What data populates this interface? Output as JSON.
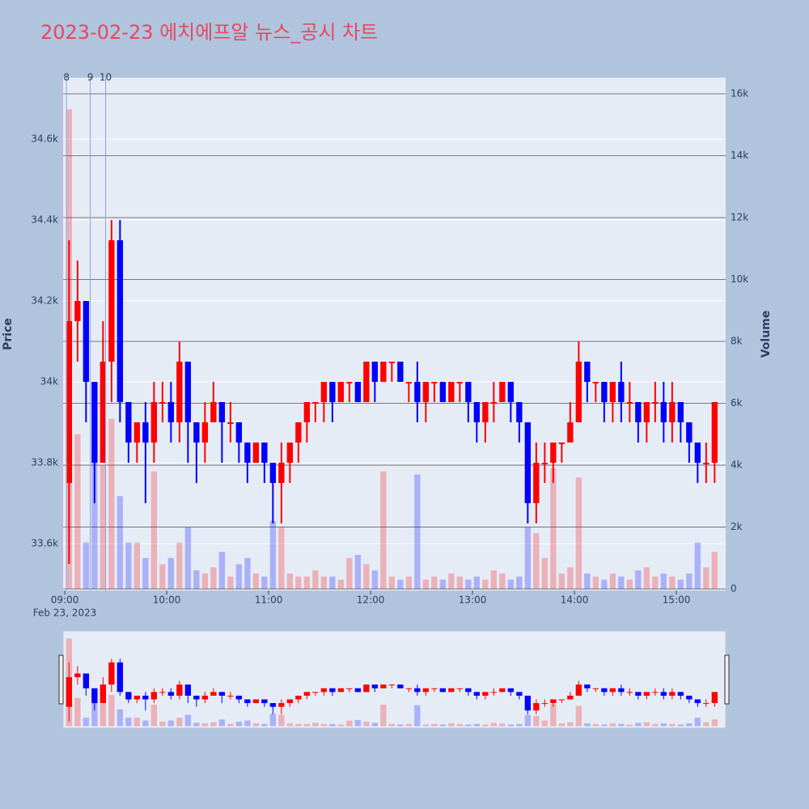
{
  "chart_data": {
    "type": "candlestick",
    "title": "2023-02-23 에치에프알 뉴스_공시 차트",
    "y_axis_title": "Price",
    "y2_axis_title": "Volume",
    "x_axis_date": "Feb 23, 2023",
    "increasing_color": "#ff0000",
    "decreasing_color": "#0000ff",
    "xlim": [
      "2023-02-23 08:59",
      "2023-02-23 15:29"
    ],
    "xticks": [
      {
        "value": "2023-02-23 09:00",
        "label": "09:00"
      },
      {
        "value": "2023-02-23 10:00",
        "label": "10:00"
      },
      {
        "value": "2023-02-23 11:00",
        "label": "11:00"
      },
      {
        "value": "2023-02-23 12:00",
        "label": "12:00"
      },
      {
        "value": "2023-02-23 13:00",
        "label": "13:00"
      },
      {
        "value": "2023-02-23 14:00",
        "label": "14:00"
      },
      {
        "value": "2023-02-23 15:00",
        "label": "15:00"
      }
    ],
    "ylim": [
      33484,
      34752
    ],
    "yticks": [
      {
        "value": 33600,
        "label": "33.6k"
      },
      {
        "value": 33800,
        "label": "33.8k"
      },
      {
        "value": 34000,
        "label": "34k"
      },
      {
        "value": 34200,
        "label": "34.2k"
      },
      {
        "value": 34400,
        "label": "34.4k"
      },
      {
        "value": 34600,
        "label": "34.6k"
      }
    ],
    "y2lim": [
      -52,
      16523
    ],
    "y2ticks": [
      0,
      {
        "value": 2000,
        "label": "2k"
      },
      {
        "value": 4000,
        "label": "4k"
      },
      {
        "value": 6000,
        "label": "6k"
      },
      {
        "value": 8000,
        "label": "8k"
      },
      {
        "value": 10000,
        "label": "10k"
      },
      {
        "value": 12000,
        "label": "12k"
      },
      {
        "value": 14000,
        "label": "14k"
      },
      {
        "value": 16000,
        "label": "16k"
      }
    ],
    "annotations": [
      {
        "x": "2023-02-23 09:01",
        "text": "8"
      },
      {
        "x": "2023-02-23 09:15",
        "text": "9"
      },
      {
        "x": "2023-02-23 09:24",
        "text": "10"
      }
    ],
    "x": [
      "2023-02-23 09:00",
      "2023-02-23 09:05",
      "2023-02-23 09:10",
      "2023-02-23 09:15",
      "2023-02-23 09:20",
      "2023-02-23 09:25",
      "2023-02-23 09:30",
      "2023-02-23 09:35",
      "2023-02-23 09:40",
      "2023-02-23 09:45",
      "2023-02-23 09:50",
      "2023-02-23 09:55",
      "2023-02-23 10:00",
      "2023-02-23 10:05",
      "2023-02-23 10:10",
      "2023-02-23 10:15",
      "2023-02-23 10:20",
      "2023-02-23 10:25",
      "2023-02-23 10:30",
      "2023-02-23 10:35",
      "2023-02-23 10:40",
      "2023-02-23 10:45",
      "2023-02-23 10:50",
      "2023-02-23 10:55",
      "2023-02-23 11:00",
      "2023-02-23 11:05",
      "2023-02-23 11:10",
      "2023-02-23 11:15",
      "2023-02-23 11:20",
      "2023-02-23 11:25",
      "2023-02-23 11:30",
      "2023-02-23 11:35",
      "2023-02-23 11:40",
      "2023-02-23 11:45",
      "2023-02-23 11:50",
      "2023-02-23 11:55",
      "2023-02-23 12:00",
      "2023-02-23 12:05",
      "2023-02-23 12:10",
      "2023-02-23 12:15",
      "2023-02-23 12:20",
      "2023-02-23 12:25",
      "2023-02-23 12:30",
      "2023-02-23 12:35",
      "2023-02-23 12:40",
      "2023-02-23 12:45",
      "2023-02-23 12:50",
      "2023-02-23 12:55",
      "2023-02-23 13:00",
      "2023-02-23 13:05",
      "2023-02-23 13:10",
      "2023-02-23 13:15",
      "2023-02-23 13:20",
      "2023-02-23 13:25",
      "2023-02-23 13:30",
      "2023-02-23 13:35",
      "2023-02-23 13:40",
      "2023-02-23 13:45",
      "2023-02-23 13:50",
      "2023-02-23 13:55",
      "2023-02-23 14:00",
      "2023-02-23 14:05",
      "2023-02-23 14:10",
      "2023-02-23 14:15",
      "2023-02-23 14:20",
      "2023-02-23 14:25",
      "2023-02-23 14:30",
      "2023-02-23 14:35",
      "2023-02-23 14:40",
      "2023-02-23 14:45",
      "2023-02-23 14:50",
      "2023-02-23 14:55",
      "2023-02-23 15:00",
      "2023-02-23 15:05",
      "2023-02-23 15:10",
      "2023-02-23 15:15",
      "2023-02-23 15:20"
    ],
    "open": [
      33750,
      34150,
      34200,
      34000,
      33800,
      34050,
      34350,
      33950,
      33850,
      33900,
      33850,
      33950,
      33950,
      33900,
      34050,
      33900,
      33850,
      33900,
      33950,
      33900,
      33900,
      33850,
      33800,
      33850,
      33800,
      33750,
      33800,
      33850,
      33900,
      33950,
      33950,
      34000,
      33950,
      34000,
      34000,
      33950,
      34050,
      34000,
      34050,
      34050,
      34000,
      34000,
      33950,
      34000,
      34000,
      33950,
      34000,
      34000,
      33950,
      33900,
      33950,
      33950,
      34000,
      33950,
      33900,
      33700,
      33800,
      33800,
      33850,
      33850,
      33900,
      34050,
      34000,
      34000,
      33950,
      34000,
      33950,
      33950,
      33900,
      33950,
      33950,
      33900,
      33950,
      33900,
      33850,
      33800,
      33800
    ],
    "high": [
      34350,
      34300,
      34200,
      34000,
      34150,
      34400,
      34400,
      33950,
      33900,
      33950,
      34000,
      34000,
      34000,
      34100,
      34050,
      33900,
      33950,
      34000,
      33950,
      33950,
      33900,
      33850,
      33850,
      33850,
      33800,
      33850,
      33850,
      33900,
      33950,
      33950,
      34000,
      34000,
      34000,
      34000,
      34000,
      34050,
      34050,
      34050,
      34050,
      34050,
      34000,
      34050,
      34000,
      34000,
      34000,
      34000,
      34000,
      34000,
      33950,
      33950,
      34000,
      34000,
      34000,
      33950,
      33900,
      33850,
      33850,
      33850,
      33850,
      33950,
      34100,
      34050,
      34000,
      34000,
      34000,
      34050,
      34000,
      33950,
      33950,
      34000,
      34000,
      34000,
      33950,
      33900,
      33850,
      33850,
      33950
    ],
    "low": [
      33550,
      34050,
      33900,
      33700,
      33800,
      33950,
      33900,
      33800,
      33800,
      33700,
      33800,
      33900,
      33850,
      33850,
      33800,
      33750,
      33800,
      33900,
      33800,
      33850,
      33800,
      33750,
      33800,
      33750,
      33650,
      33650,
      33750,
      33800,
      33850,
      33900,
      33900,
      33900,
      33950,
      33950,
      33950,
      33950,
      33950,
      34000,
      34000,
      34000,
      33950,
      33900,
      33900,
      33950,
      33950,
      33950,
      33950,
      33900,
      33850,
      33850,
      33900,
      33950,
      33900,
      33850,
      33650,
      33650,
      33750,
      33750,
      33800,
      33850,
      33900,
      33950,
      33950,
      33900,
      33900,
      33900,
      33900,
      33850,
      33850,
      33900,
      33850,
      33850,
      33850,
      33800,
      33750,
      33750,
      33750
    ],
    "close": [
      34150,
      34200,
      34000,
      33800,
      34050,
      34350,
      33950,
      33850,
      33900,
      33850,
      33950,
      33950,
      33900,
      34050,
      33900,
      33850,
      33900,
      33950,
      33900,
      33900,
      33850,
      33800,
      33850,
      33800,
      33750,
      33800,
      33850,
      33900,
      33950,
      33950,
      34000,
      33950,
      34000,
      34000,
      33950,
      34050,
      34000,
      34050,
      34050,
      34000,
      34000,
      33950,
      34000,
      34000,
      33950,
      34000,
      34000,
      33950,
      33900,
      33950,
      33950,
      34000,
      33950,
      33900,
      33700,
      33800,
      33800,
      33850,
      33850,
      33900,
      34050,
      34000,
      34000,
      33950,
      34000,
      33950,
      33950,
      33900,
      33950,
      33950,
      33900,
      33950,
      33900,
      33850,
      33800,
      33800,
      33950
    ],
    "volume": [
      15500,
      5000,
      1500,
      4500,
      4000,
      5500,
      3000,
      1500,
      1500,
      1000,
      3800,
      800,
      1000,
      1500,
      2000,
      600,
      500,
      700,
      1200,
      400,
      800,
      1000,
      500,
      400,
      2200,
      2000,
      500,
      400,
      400,
      600,
      400,
      400,
      300,
      1000,
      1100,
      800,
      600,
      3800,
      400,
      300,
      400,
      3700,
      300,
      400,
      300,
      500,
      400,
      300,
      400,
      300,
      600,
      500,
      300,
      400,
      2000,
      1800,
      1000,
      3900,
      500,
      700,
      3600,
      500,
      400,
      300,
      500,
      400,
      300,
      600,
      700,
      400,
      500,
      400,
      300,
      500,
      1500,
      700,
      1200
    ],
    "volume_axis": "y2",
    "grid": true,
    "range_slider": true
  }
}
